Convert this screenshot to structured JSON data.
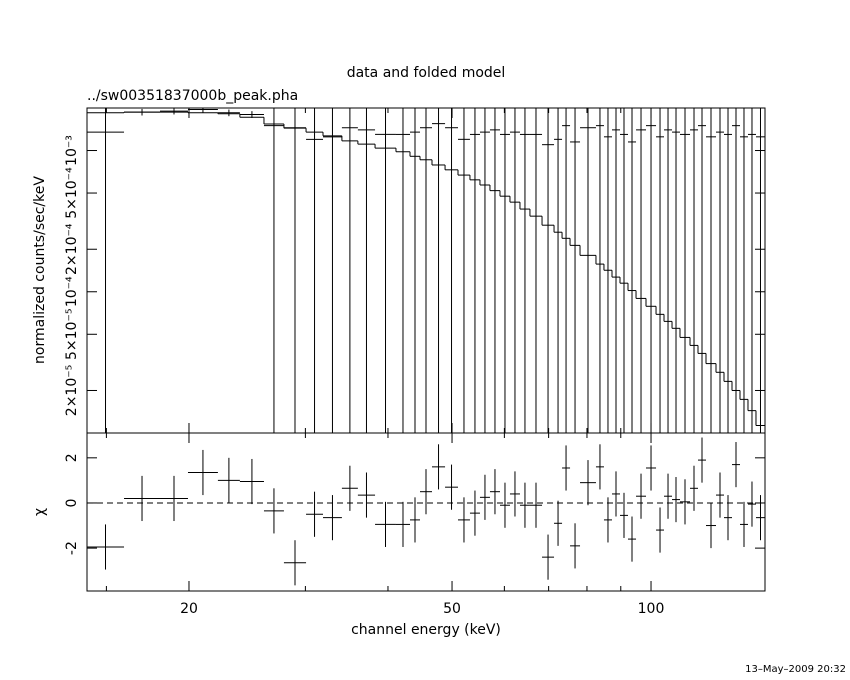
{
  "chart_data": {
    "type": "spectrum",
    "title": "data and folded model",
    "subtitle": "../sw00351837000b_peak.pha",
    "xlabel": "channel energy (keV)",
    "ylabel": "normalized counts/sec/keV",
    "residual_ylabel": "χ",
    "timestamp": "13–May–2009 20:32",
    "log_x": true,
    "log_y": true,
    "xlim": [
      14.02,
      148.74
    ],
    "xticks": [
      20,
      50,
      100
    ],
    "x_minor_ticks": [
      15,
      30,
      40,
      60,
      70,
      80,
      90
    ],
    "ylim": [
      1e-05,
      0.002
    ],
    "yticks": [
      {
        "value": 2e-05,
        "label": "2×10⁻⁵"
      },
      {
        "value": 5e-05,
        "label": "5×10⁻⁵"
      },
      {
        "value": 0.0001,
        "label": "10⁻⁴"
      },
      {
        "value": 0.0002,
        "label": "2×10⁻⁴"
      },
      {
        "value": 0.0005,
        "label": "5×10⁻⁴"
      },
      {
        "value": 0.001,
        "label": "10⁻³"
      }
    ],
    "x_low": [
      14.02,
      15.95,
      18.08,
      19.93,
      22.12,
      23.88,
      25.97,
      27.84,
      30.07,
      31.9,
      34.07,
      36.02,
      38.24,
      41.13,
      43.19,
      44.72,
      46.63,
      48.8,
      51.05,
      53.22,
      55.11,
      57.06,
      59.09,
      61.18,
      63.35,
      65.59,
      68.41,
      71.33,
      73.35,
      75.42,
      78.09,
      82.55,
      84.88,
      87.29,
      89.76,
      92.29,
      94.91,
      98.27,
      101.76,
      104.63,
      107.59,
      110.62,
      114.55,
      117.78,
      121.11,
      125.4,
      128.95,
      132.59,
      136.33,
      140.18,
      144.14
    ],
    "x_high": [
      15.95,
      18.08,
      19.93,
      22.12,
      23.88,
      25.97,
      27.84,
      30.07,
      31.9,
      34.07,
      36.02,
      38.24,
      41.13,
      43.19,
      44.72,
      46.63,
      48.8,
      51.05,
      53.22,
      55.11,
      57.06,
      59.09,
      61.18,
      63.35,
      65.59,
      68.41,
      71.33,
      73.35,
      75.42,
      78.09,
      82.55,
      84.88,
      87.29,
      89.76,
      92.29,
      94.91,
      98.27,
      101.76,
      104.63,
      107.59,
      110.62,
      114.55,
      117.78,
      121.11,
      125.4,
      128.95,
      132.59,
      136.33,
      140.18,
      144.14,
      148.74
    ],
    "values": [
      0.00135,
      0.00187,
      0.0019,
      0.00195,
      0.00185,
      0.0018,
      0.0015,
      0.00145,
      0.0012,
      0.00125,
      0.00145,
      0.0014,
      0.0013,
      0.0013,
      0.00135,
      0.00145,
      0.00155,
      0.00145,
      0.0012,
      0.0013,
      0.00135,
      0.0014,
      0.0013,
      0.00135,
      0.0013,
      0.0013,
      0.0011,
      0.0012,
      0.0015,
      0.00115,
      0.00145,
      0.0015,
      0.00125,
      0.0014,
      0.0013,
      0.00115,
      0.0014,
      0.0015,
      0.00125,
      0.0014,
      0.00135,
      0.0013,
      0.0014,
      0.0015,
      0.00125,
      0.00135,
      0.0013,
      0.0015,
      0.00125,
      0.0013,
      0.00125
    ],
    "errors": [
      0.00135,
      0.0001,
      0.0001,
      0.0001,
      0.0001,
      0.0001,
      0.0015,
      0.00145,
      0.0012,
      0.00125,
      0.00145,
      0.0014,
      0.0013,
      0.0013,
      0.00135,
      0.00145,
      0.00155,
      0.00145,
      0.0012,
      0.0013,
      0.00135,
      0.0014,
      0.0013,
      0.00135,
      0.0013,
      0.0013,
      0.0011,
      0.0012,
      0.0015,
      0.00115,
      0.00145,
      0.0015,
      0.00125,
      0.0014,
      0.0013,
      0.00115,
      0.0014,
      0.0015,
      0.00125,
      0.0014,
      0.00135,
      0.0013,
      0.0014,
      0.0015,
      0.00125,
      0.00135,
      0.0013,
      0.0015,
      0.00125,
      0.0013,
      0.00125
    ],
    "model": [
      0.00185,
      0.00187,
      0.00187,
      0.00185,
      0.00182,
      0.00172,
      0.00154,
      0.00144,
      0.00135,
      0.00127,
      0.00117,
      0.00111,
      0.00104,
      0.00098,
      0.00091,
      0.00086,
      0.00079,
      0.00073,
      0.00067,
      0.00062,
      0.00057,
      0.00052,
      0.000475,
      0.000431,
      0.000385,
      0.000343,
      0.000296,
      0.000264,
      0.000239,
      0.000213,
      0.000181,
      0.000157,
      0.000142,
      0.000127,
      0.000115,
      0.000102,
      8.97e-05,
      7.89e-05,
      6.92e-05,
      6.17e-05,
      5.51e-05,
      4.75e-05,
      4.17e-05,
      3.66e-05,
      3.1e-05,
      2.69e-05,
      2.32e-05,
      2e-05,
      1.73e-05,
      1.44e-05,
      1.13e-05
    ],
    "residuals": [
      -1.95,
      0.2,
      0.2,
      1.35,
      1.0,
      0.95,
      -0.35,
      -2.65,
      -0.5,
      -0.65,
      0.65,
      0.35,
      -0.95,
      -0.95,
      -0.75,
      0.5,
      1.6,
      0.7,
      -0.75,
      -0.45,
      0.25,
      0.5,
      -0.1,
      0.4,
      -0.1,
      -0.1,
      -2.4,
      -0.9,
      1.55,
      -1.9,
      0.9,
      1.6,
      -0.75,
      0.4,
      -0.55,
      -1.6,
      0.3,
      1.55,
      -1.2,
      0.3,
      0.15,
      0.05,
      0.65,
      1.9,
      -1.0,
      0.35,
      -0.65,
      1.7,
      -0.95,
      -0.05,
      -0.65
    ],
    "residual_errors": [
      1,
      1,
      1,
      1,
      1,
      1,
      1,
      1,
      1,
      1,
      1,
      1,
      1,
      1,
      1,
      1,
      1,
      1,
      1,
      1,
      1,
      1,
      1,
      1,
      1,
      1,
      1,
      1,
      1,
      1,
      1,
      1,
      1,
      1,
      1,
      1,
      1,
      1,
      1,
      1,
      1,
      1,
      1,
      1,
      1,
      1,
      1,
      1,
      1,
      1,
      1
    ],
    "residual_ylim": [
      -3.9,
      3.1
    ],
    "residual_yticks": [
      -2,
      0,
      2
    ],
    "residual_zero": 0
  }
}
